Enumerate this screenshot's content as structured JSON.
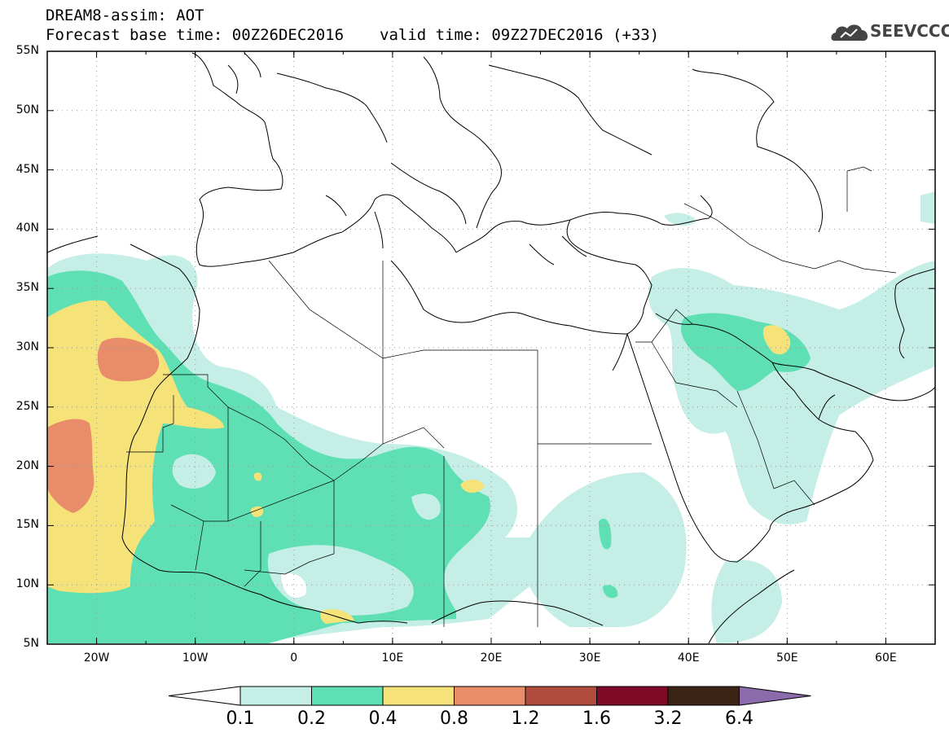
{
  "header": {
    "line1": "DREAM8-assim: AOT",
    "base_time": "Forecast base time: 00Z26DEC2016",
    "valid_time": "valid time: 09Z27DEC2016 (+33)"
  },
  "logo": {
    "text": "SEEVCCC",
    "icon": "cloud-logo-icon"
  },
  "axes": {
    "lat_labels": [
      "55N",
      "50N",
      "45N",
      "40N",
      "35N",
      "30N",
      "25N",
      "20N",
      "15N",
      "10N",
      "5N"
    ],
    "lon_labels": [
      "20W",
      "10W",
      "0",
      "10E",
      "20E",
      "30E",
      "40E",
      "50E",
      "60E"
    ],
    "lat_range": [
      5,
      55
    ],
    "lon_range": [
      -25,
      65
    ],
    "grid": "dotted"
  },
  "colorbar": {
    "labels": [
      "0.1",
      "0.2",
      "0.4",
      "0.8",
      "1.2",
      "1.6",
      "3.2",
      "6.4"
    ],
    "colors": [
      "#ffffff",
      "#c4eee6",
      "#5ee0b4",
      "#f5e37a",
      "#e98c6a",
      "#b04c3e",
      "#7e0a27",
      "#3b2315",
      "#8b6bab"
    ]
  }
}
